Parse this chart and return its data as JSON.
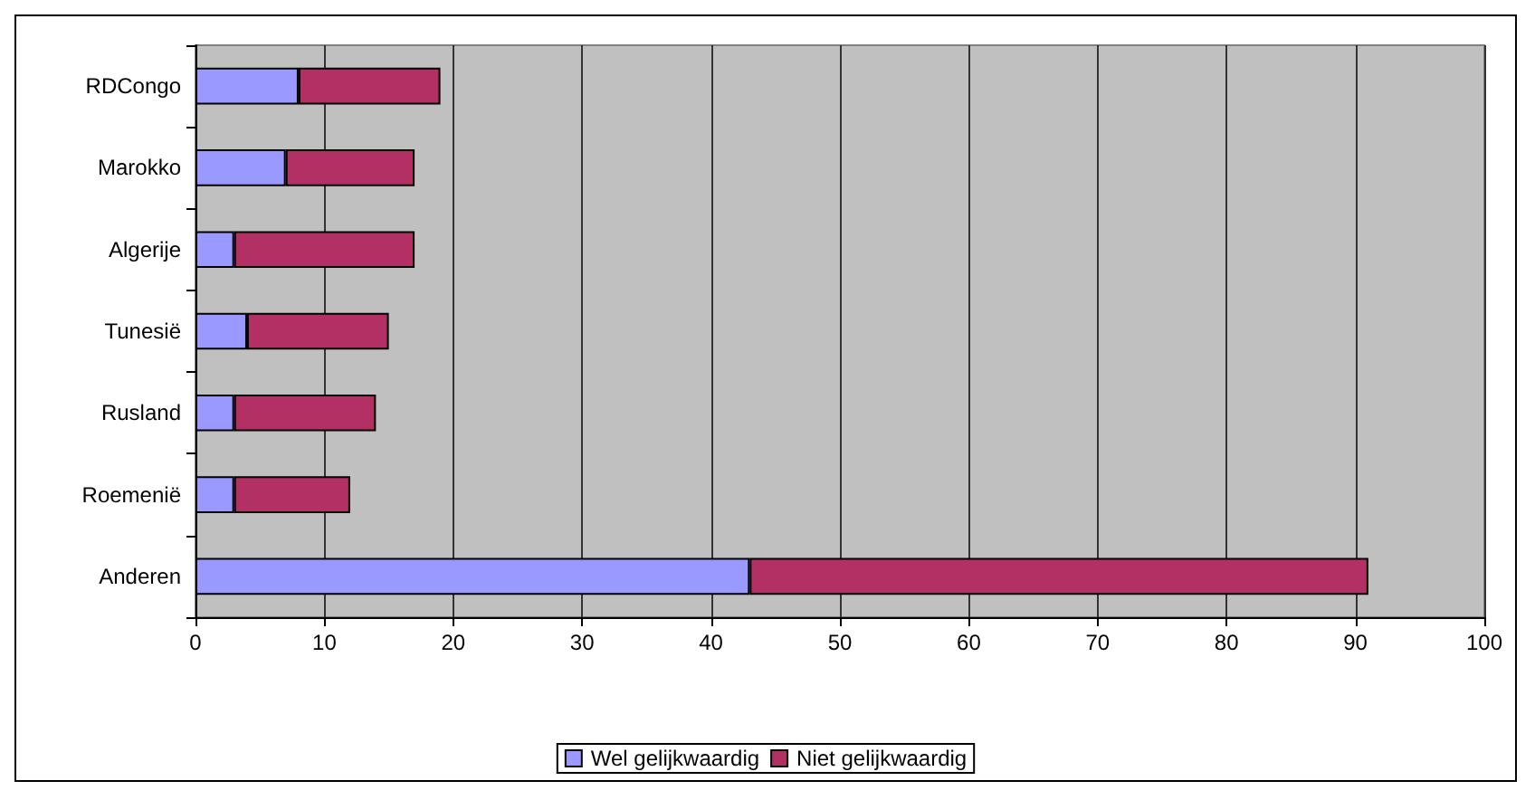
{
  "chart_data": {
    "type": "bar",
    "orientation": "horizontal",
    "stacked": true,
    "categories": [
      "RDCongo",
      "Marokko",
      "Algerije",
      "Tunesië",
      "Rusland",
      "Roemenië",
      "Anderen"
    ],
    "series": [
      {
        "name": "Wel gelijkwaardig",
        "color": "#9999ff",
        "values": [
          8,
          7,
          3,
          4,
          3,
          3,
          43
        ]
      },
      {
        "name": "Niet gelijkwaardig",
        "color": "#b23064",
        "values": [
          11,
          10,
          14,
          11,
          11,
          9,
          48
        ]
      }
    ],
    "xlim": [
      0,
      100
    ],
    "xticks": [
      0,
      10,
      20,
      30,
      40,
      50,
      60,
      70,
      80,
      90,
      100
    ],
    "grid": "x",
    "legend": "bottom"
  }
}
